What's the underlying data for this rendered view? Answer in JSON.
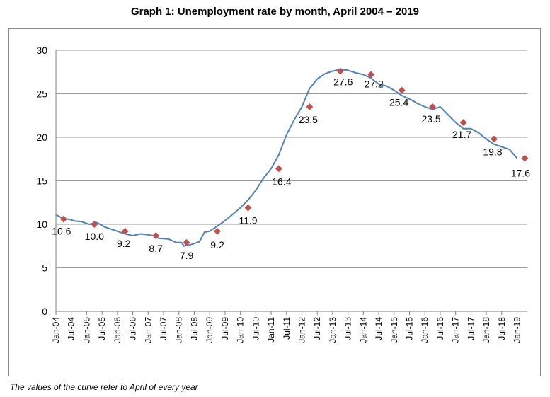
{
  "chart_data": {
    "type": "line",
    "title": "Graph 1: Unemployment rate by month, April 2004 – 2019",
    "note": "The values of the curve refer to April  of every year",
    "xlabel": "",
    "ylabel": "",
    "ylim": [
      0,
      30
    ],
    "yticks": [
      "0",
      "5",
      "10",
      "15",
      "20",
      "25",
      "30"
    ],
    "xticks": [
      "Jan-04",
      "Jul-04",
      "Jan-05",
      "Jul-05",
      "Jan-06",
      "Jul-06",
      "Jan-07",
      "Jul-07",
      "Jan-08",
      "Jul-08",
      "Jan-09",
      "Jul-09",
      "Jan-10",
      "Jul-10",
      "Jan-11",
      "Jul-11",
      "Jan-12",
      "Jul-12",
      "Jan-13",
      "Jul-13",
      "Jan-14",
      "Jul-14",
      "Jan-15",
      "Jul-15",
      "Jan-16",
      "Jul-16",
      "Jan-17",
      "Jul-17",
      "Jan-18",
      "Jul-18",
      "Jan-19"
    ],
    "grid": true,
    "legend": "none",
    "line_color": "#4f81bd",
    "marker_color": "#c0504d",
    "series": [
      {
        "values": [
          [
            0,
            11.1
          ],
          [
            2,
            10.8
          ],
          [
            3,
            10.6
          ],
          [
            5,
            10.6
          ],
          [
            7,
            10.4
          ],
          [
            10,
            10.3
          ],
          [
            13,
            10.0
          ],
          [
            16,
            10.2
          ],
          [
            19,
            9.7
          ],
          [
            22,
            9.4
          ],
          [
            24,
            9.2
          ],
          [
            27,
            8.9
          ],
          [
            30,
            8.7
          ],
          [
            33,
            8.9
          ],
          [
            36,
            8.8
          ],
          [
            38,
            8.7
          ],
          [
            40,
            8.4
          ],
          [
            44,
            8.3
          ],
          [
            47,
            7.9
          ],
          [
            49,
            7.9
          ],
          [
            50,
            7.5
          ],
          [
            53,
            7.7
          ],
          [
            56,
            8.0
          ],
          [
            58,
            9.1
          ],
          [
            60,
            9.2
          ],
          [
            62,
            9.6
          ],
          [
            65,
            10.2
          ],
          [
            68,
            10.9
          ],
          [
            72,
            11.9
          ],
          [
            75,
            12.8
          ],
          [
            78,
            13.9
          ],
          [
            81,
            15.3
          ],
          [
            84,
            16.4
          ],
          [
            87,
            18.0
          ],
          [
            90,
            20.3
          ],
          [
            93,
            22.0
          ],
          [
            96,
            23.5
          ],
          [
            99,
            25.6
          ],
          [
            102,
            26.7
          ],
          [
            105,
            27.3
          ],
          [
            108,
            27.6
          ],
          [
            111,
            27.8
          ],
          [
            114,
            27.7
          ],
          [
            117,
            27.4
          ],
          [
            120,
            27.2
          ],
          [
            123,
            26.8
          ],
          [
            126,
            26.1
          ],
          [
            129,
            25.9
          ],
          [
            132,
            25.4
          ],
          [
            135,
            24.8
          ],
          [
            138,
            24.4
          ],
          [
            141,
            23.9
          ],
          [
            144,
            23.5
          ],
          [
            147,
            23.2
          ],
          [
            150,
            23.5
          ],
          [
            153,
            22.6
          ],
          [
            156,
            21.7
          ],
          [
            159,
            21.0
          ],
          [
            162,
            21.0
          ],
          [
            165,
            20.5
          ],
          [
            168,
            19.8
          ],
          [
            171,
            19.2
          ],
          [
            174,
            18.9
          ],
          [
            177,
            18.6
          ],
          [
            180,
            17.6
          ]
        ]
      }
    ],
    "markers": [
      {
        "x": 3,
        "y": 10.6,
        "label": "10.6"
      },
      {
        "x": 15,
        "y": 10.0,
        "label": "10.0"
      },
      {
        "x": 27,
        "y": 9.2,
        "label": "9.2"
      },
      {
        "x": 39,
        "y": 8.7,
        "label": "8.7"
      },
      {
        "x": 51,
        "y": 7.9,
        "label": "7.9"
      },
      {
        "x": 63,
        "y": 9.2,
        "label": "9.2"
      },
      {
        "x": 75,
        "y": 11.9,
        "label": "11.9"
      },
      {
        "x": 87,
        "y": 16.4,
        "label": "16.4"
      },
      {
        "x": 99,
        "y": 23.5,
        "label": "23.5"
      },
      {
        "x": 111,
        "y": 27.6,
        "label": "27.6"
      },
      {
        "x": 123,
        "y": 27.2,
        "label": "27.2"
      },
      {
        "x": 135,
        "y": 25.4,
        "label": "25.4"
      },
      {
        "x": 147,
        "y": 23.5,
        "label": "23.5"
      },
      {
        "x": 159,
        "y": 21.7,
        "label": "21.7"
      },
      {
        "x": 171,
        "y": 19.8,
        "label": "19.8"
      },
      {
        "x": 183,
        "y": 17.6,
        "label": "17.6"
      }
    ]
  }
}
